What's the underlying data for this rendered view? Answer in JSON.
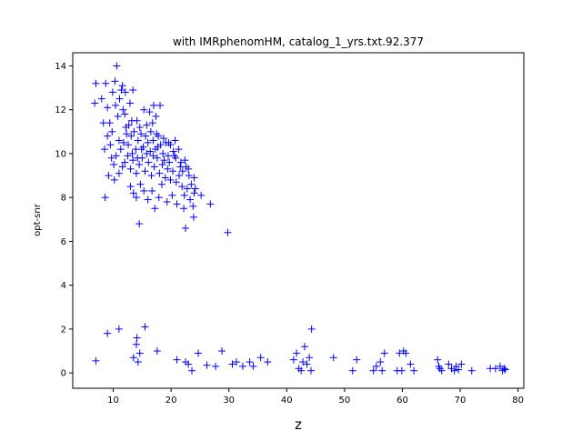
{
  "chart_data": {
    "type": "scatter",
    "title": "with IMRphenomHM, catalog_1_yrs.txt.92.377",
    "xlabel": "z",
    "ylabel": "opt-snr",
    "xlim": [
      3.0,
      81.0
    ],
    "ylim": [
      -0.7,
      14.6
    ],
    "xticks": [
      10,
      20,
      30,
      40,
      50,
      60,
      70,
      80
    ],
    "yticks": [
      0,
      2,
      4,
      6,
      8,
      10,
      12,
      14
    ],
    "marker": "+",
    "color": "#0000ff",
    "grid": false,
    "legend": "none",
    "points": [
      [
        7.0,
        13.2
      ],
      [
        6.8,
        12.3
      ],
      [
        8.0,
        12.5
      ],
      [
        8.7,
        13.2
      ],
      [
        9.0,
        12.1
      ],
      [
        9.9,
        12.8
      ],
      [
        10.3,
        13.3
      ],
      [
        10.6,
        14.0
      ],
      [
        10.4,
        12.2
      ],
      [
        11.1,
        12.5
      ],
      [
        11.4,
        12.9
      ],
      [
        11.6,
        13.1
      ],
      [
        12.1,
        12.8
      ],
      [
        12.9,
        12.3
      ],
      [
        13.4,
        12.9
      ],
      [
        8.3,
        11.4
      ],
      [
        9.4,
        11.4
      ],
      [
        9.8,
        11.0
      ],
      [
        10.8,
        11.7
      ],
      [
        11.7,
        12.0
      ],
      [
        12.0,
        11.8
      ],
      [
        14.1,
        11.5
      ],
      [
        15.3,
        12.0
      ],
      [
        16.3,
        11.9
      ],
      [
        17.0,
        12.2
      ],
      [
        18.1,
        12.2
      ],
      [
        17.4,
        11.7
      ],
      [
        16.8,
        11.4
      ],
      [
        8.5,
        10.2
      ],
      [
        9.0,
        10.8
      ],
      [
        9.5,
        10.4
      ],
      [
        9.7,
        9.8
      ],
      [
        10.1,
        9.5
      ],
      [
        10.5,
        9.9
      ],
      [
        11.0,
        10.6
      ],
      [
        11.3,
        10.2
      ],
      [
        11.8,
        10.5
      ],
      [
        12.3,
        10.9
      ],
      [
        12.7,
        11.3
      ],
      [
        13.1,
        10.8
      ],
      [
        13.6,
        11.0
      ],
      [
        13.9,
        10.2
      ],
      [
        14.3,
        10.6
      ],
      [
        14.8,
        10.9
      ],
      [
        15.2,
        10.3
      ],
      [
        15.6,
        10.8
      ],
      [
        16.0,
        10.5
      ],
      [
        16.4,
        10.1
      ],
      [
        16.9,
        10.6
      ],
      [
        17.3,
        10.2
      ],
      [
        17.8,
        10.8
      ],
      [
        18.2,
        10.4
      ],
      [
        18.6,
        10.0
      ],
      [
        19.1,
        10.5
      ],
      [
        19.5,
        9.9
      ],
      [
        19.9,
        10.4
      ],
      [
        20.4,
        10.1
      ],
      [
        20.8,
        9.8
      ],
      [
        21.3,
        10.2
      ],
      [
        21.7,
        9.6
      ],
      [
        22.0,
        9.2
      ],
      [
        22.6,
        9.4
      ],
      [
        23.1,
        9.0
      ],
      [
        23.5,
        8.6
      ],
      [
        24.0,
        8.9
      ],
      [
        24.2,
        8.4
      ],
      [
        12.0,
        9.6
      ],
      [
        12.5,
        9.9
      ],
      [
        13.0,
        9.3
      ],
      [
        13.4,
        9.7
      ],
      [
        14.0,
        9.1
      ],
      [
        14.5,
        9.5
      ],
      [
        15.0,
        9.8
      ],
      [
        15.5,
        9.2
      ],
      [
        16.1,
        9.6
      ],
      [
        16.6,
        9.0
      ],
      [
        17.1,
        9.4
      ],
      [
        17.6,
        9.8
      ],
      [
        18.0,
        9.1
      ],
      [
        18.5,
        9.5
      ],
      [
        19.0,
        8.9
      ],
      [
        19.4,
        9.3
      ],
      [
        19.9,
        8.8
      ],
      [
        20.3,
        9.2
      ],
      [
        20.9,
        8.7
      ],
      [
        21.4,
        9.0
      ],
      [
        21.9,
        8.5
      ],
      [
        22.3,
        8.1
      ],
      [
        22.8,
        8.4
      ],
      [
        23.3,
        7.9
      ],
      [
        23.8,
        7.6
      ],
      [
        24.0,
        8.2
      ],
      [
        13.0,
        8.5
      ],
      [
        13.5,
        8.2
      ],
      [
        14.0,
        8.0
      ],
      [
        14.7,
        8.6
      ],
      [
        15.3,
        8.3
      ],
      [
        16.0,
        7.9
      ],
      [
        16.7,
        8.3
      ],
      [
        17.2,
        7.5
      ],
      [
        17.9,
        8.0
      ],
      [
        18.4,
        8.6
      ],
      [
        19.3,
        7.8
      ],
      [
        20.2,
        8.1
      ],
      [
        21.0,
        7.7
      ],
      [
        22.2,
        7.5
      ],
      [
        23.9,
        7.1
      ],
      [
        25.2,
        8.1
      ],
      [
        26.8,
        7.7
      ],
      [
        22.5,
        6.6
      ],
      [
        14.5,
        6.8
      ],
      [
        29.8,
        6.4
      ],
      [
        8.6,
        8.0
      ],
      [
        10.2,
        8.8
      ],
      [
        11.0,
        9.1
      ],
      [
        11.6,
        9.4
      ],
      [
        9.2,
        9.0
      ],
      [
        12.6,
        10.4
      ],
      [
        13.3,
        10.0
      ],
      [
        14.2,
        9.8
      ],
      [
        14.9,
        10.2
      ],
      [
        15.8,
        10.0
      ],
      [
        16.9,
        9.9
      ],
      [
        17.7,
        10.3
      ],
      [
        18.8,
        9.7
      ],
      [
        19.7,
        9.6
      ],
      [
        20.6,
        9.9
      ],
      [
        21.6,
        9.4
      ],
      [
        22.4,
        9.7
      ],
      [
        23.0,
        9.3
      ],
      [
        12.2,
        11.2
      ],
      [
        13.2,
        11.5
      ],
      [
        14.6,
        11.2
      ],
      [
        15.8,
        11.3
      ],
      [
        16.5,
        11.0
      ],
      [
        17.5,
        10.9
      ],
      [
        18.7,
        10.7
      ],
      [
        19.6,
        10.5
      ],
      [
        20.7,
        10.6
      ],
      [
        7.0,
        0.55
      ],
      [
        9.0,
        1.8
      ],
      [
        11.0,
        2.0
      ],
      [
        13.5,
        0.7
      ],
      [
        14.1,
        1.6
      ],
      [
        14.0,
        1.3
      ],
      [
        14.3,
        0.5
      ],
      [
        14.6,
        0.9
      ],
      [
        15.5,
        2.1
      ],
      [
        17.6,
        1.0
      ],
      [
        21.0,
        0.6
      ],
      [
        22.5,
        0.5
      ],
      [
        23.0,
        0.4
      ],
      [
        23.6,
        0.1
      ],
      [
        24.7,
        0.9
      ],
      [
        26.2,
        0.35
      ],
      [
        27.7,
        0.3
      ],
      [
        28.8,
        1.0
      ],
      [
        30.6,
        0.4
      ],
      [
        31.3,
        0.5
      ],
      [
        32.4,
        0.3
      ],
      [
        33.6,
        0.5
      ],
      [
        34.2,
        0.3
      ],
      [
        35.5,
        0.7
      ],
      [
        36.7,
        0.5
      ],
      [
        41.2,
        0.6
      ],
      [
        41.7,
        0.9
      ],
      [
        42.1,
        0.2
      ],
      [
        42.5,
        0.1
      ],
      [
        42.8,
        0.5
      ],
      [
        43.1,
        1.2
      ],
      [
        43.5,
        0.4
      ],
      [
        43.9,
        0.7
      ],
      [
        44.2,
        0.1
      ],
      [
        44.3,
        2.0
      ],
      [
        48.1,
        0.7
      ],
      [
        51.4,
        0.1
      ],
      [
        52.1,
        0.6
      ],
      [
        55.0,
        0.1
      ],
      [
        55.5,
        0.3
      ],
      [
        56.2,
        0.5
      ],
      [
        56.5,
        0.1
      ],
      [
        56.9,
        0.9
      ],
      [
        59.1,
        0.1
      ],
      [
        59.5,
        0.9
      ],
      [
        59.9,
        0.1
      ],
      [
        60.2,
        1.0
      ],
      [
        60.6,
        0.9
      ],
      [
        61.4,
        0.4
      ],
      [
        62.0,
        0.1
      ],
      [
        66.1,
        0.6
      ],
      [
        66.3,
        0.3
      ],
      [
        66.5,
        0.2
      ],
      [
        66.8,
        0.1
      ],
      [
        68.0,
        0.4
      ],
      [
        68.5,
        0.2
      ],
      [
        69.0,
        0.1
      ],
      [
        69.3,
        0.3
      ],
      [
        69.7,
        0.15
      ],
      [
        70.2,
        0.4
      ],
      [
        72.0,
        0.1
      ],
      [
        75.2,
        0.2
      ],
      [
        76.1,
        0.2
      ],
      [
        76.9,
        0.3
      ],
      [
        77.3,
        0.1
      ],
      [
        77.6,
        0.2
      ],
      [
        77.8,
        0.15
      ]
    ]
  }
}
